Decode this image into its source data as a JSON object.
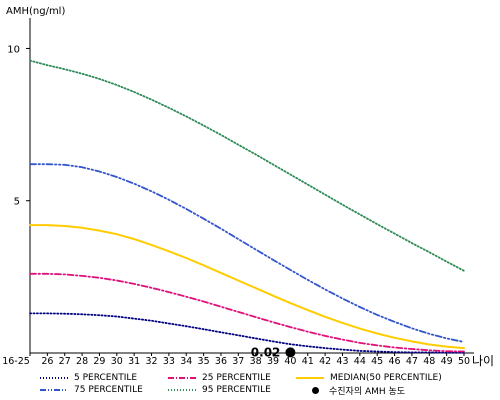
{
  "chart_data": {
    "type": "line",
    "ylabel": "AMH(ng/ml)",
    "xlabel": "나이",
    "ylim": [
      0,
      11
    ],
    "y_ticks": [
      "5",
      "10"
    ],
    "y_tick_values": [
      5,
      10
    ],
    "categories": [
      "16-25",
      "26",
      "27",
      "28",
      "29",
      "30",
      "31",
      "32",
      "33",
      "34",
      "35",
      "36",
      "37",
      "38",
      "39",
      "40",
      "41",
      "42",
      "43",
      "44",
      "45",
      "46",
      "47",
      "48",
      "49",
      "50"
    ],
    "series": [
      {
        "name": "5 PERCENTILE",
        "color": "#000080",
        "dash": "dot",
        "values": [
          1.3,
          1.3,
          1.29,
          1.27,
          1.24,
          1.2,
          1.13,
          1.06,
          0.97,
          0.88,
          0.78,
          0.68,
          0.58,
          0.48,
          0.38,
          0.29,
          0.22,
          0.16,
          0.11,
          0.07,
          0.05,
          0.03,
          0.02,
          0.02,
          0.01,
          0.01
        ]
      },
      {
        "name": "25 PERCENTILE",
        "color": "#e0107a",
        "dash": "dashdot",
        "values": [
          2.6,
          2.6,
          2.58,
          2.53,
          2.47,
          2.38,
          2.27,
          2.14,
          2.0,
          1.85,
          1.69,
          1.52,
          1.35,
          1.18,
          1.01,
          0.85,
          0.7,
          0.56,
          0.44,
          0.33,
          0.25,
          0.18,
          0.13,
          0.09,
          0.06,
          0.05
        ]
      },
      {
        "name": "MEDIAN(50 PERCENTILE)",
        "color": "#ffcc00",
        "dash": "solid",
        "values": [
          4.2,
          4.2,
          4.17,
          4.11,
          4.02,
          3.9,
          3.74,
          3.55,
          3.34,
          3.12,
          2.88,
          2.63,
          2.38,
          2.13,
          1.88,
          1.64,
          1.41,
          1.19,
          0.99,
          0.8,
          0.64,
          0.5,
          0.38,
          0.28,
          0.21,
          0.16
        ]
      },
      {
        "name": "75 PERCENTILE",
        "color": "#3355cc",
        "dash": "dashdotdot",
        "values": [
          6.2,
          6.2,
          6.18,
          6.1,
          5.96,
          5.78,
          5.56,
          5.31,
          5.03,
          4.73,
          4.41,
          4.08,
          3.74,
          3.4,
          3.06,
          2.73,
          2.4,
          2.09,
          1.79,
          1.51,
          1.25,
          1.02,
          0.81,
          0.63,
          0.48,
          0.36
        ]
      },
      {
        "name": "95 PERCENTILE",
        "color": "#2e8b57",
        "dash": "dot",
        "values": [
          9.6,
          9.45,
          9.32,
          9.17,
          9.0,
          8.8,
          8.57,
          8.32,
          8.05,
          7.77,
          7.47,
          7.16,
          6.84,
          6.52,
          6.19,
          5.86,
          5.53,
          5.2,
          4.87,
          4.55,
          4.23,
          3.92,
          3.61,
          3.31,
          3.0,
          2.7
        ]
      }
    ],
    "marker": {
      "name": "수진자의 AMH 농도",
      "x": "40",
      "y": 0.02,
      "label": "0.02"
    },
    "grid": false,
    "legend": "bottom"
  }
}
